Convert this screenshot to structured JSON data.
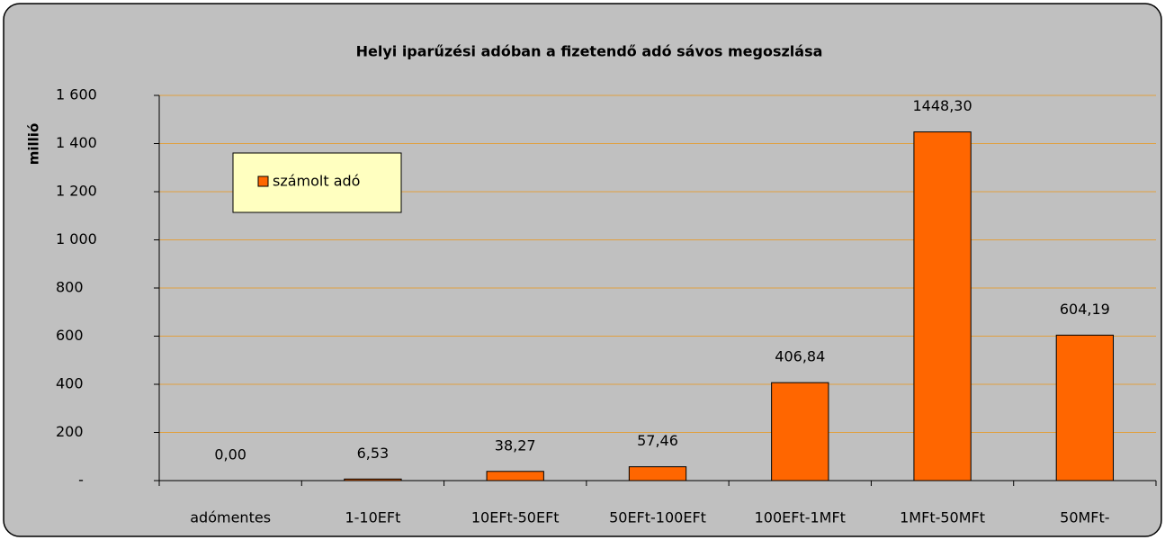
{
  "chart_data": {
    "type": "bar",
    "title": "Helyi iparűzési adóban a fizetendő adó sávos megoszlása",
    "ylabel": "millió",
    "categories": [
      "adómentes",
      "1-10EFt",
      "10EFt-50EFt",
      "50EFt-100EFt",
      "100EFt-1MFt",
      "1MFt-50MFt",
      "50MFt-"
    ],
    "series": [
      {
        "name": "számolt adó",
        "color": "#ff6600",
        "values": [
          0,
          6.53,
          38.27,
          57.46,
          406.84,
          1448.3,
          604.19
        ],
        "value_labels": [
          "0,00",
          "6,53",
          "38,27",
          "57,46",
          "406,84",
          "1448,30",
          "604,19"
        ]
      }
    ],
    "ylim": [
      0,
      1600
    ],
    "yticks": [
      {
        "value": 0,
        "label": "-"
      },
      200,
      400,
      600,
      800,
      {
        "value": 1000,
        "label": "1 000"
      },
      {
        "value": 1200,
        "label": "1 200"
      },
      {
        "value": 1400,
        "label": "1 400"
      },
      {
        "value": 1600,
        "label": "1 600"
      }
    ],
    "grid": true,
    "legend_position": "upper left"
  }
}
